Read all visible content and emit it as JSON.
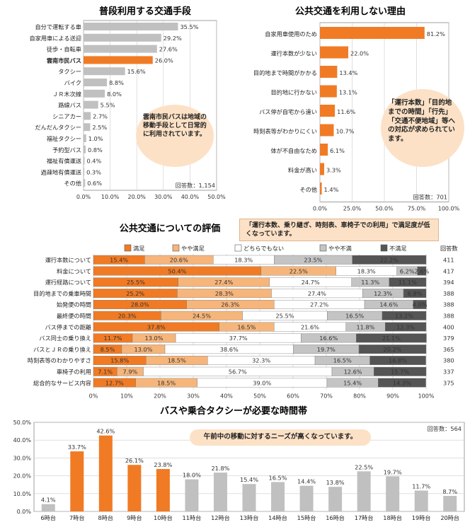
{
  "colors": {
    "orange": "#f07b24",
    "peach": "#f6b57a",
    "white": "#ffffff",
    "lgray": "#c4c4c4",
    "dgray": "#555555",
    "bar_gray": "#c0c0c0",
    "note_bg": "#fce1c6"
  },
  "chart_data": [
    {
      "id": "usual-transport",
      "type": "bar",
      "orientation": "horizontal",
      "title": "普段利用する交通手段",
      "categories": [
        "自分で運転する車",
        "自家用車による送迎",
        "徒歩・自転車",
        "雲南市民バス",
        "タクシー",
        "バイク",
        "ＪＲ木次線",
        "路線バス",
        "シニアカー",
        "だんだんタクシー",
        "福祉タクシー",
        "予約型バス",
        "福祉有償運送",
        "過疎地有償運送",
        "その他"
      ],
      "values": [
        35.5,
        29.2,
        27.6,
        26.0,
        15.6,
        8.8,
        8.0,
        5.5,
        2.7,
        2.5,
        1.0,
        0.8,
        0.4,
        0.3,
        0.6
      ],
      "value_labels": [
        "35.5%",
        "29.2%",
        "27.6%",
        "26.0%",
        "15.6%",
        "8.8%",
        "8.0%",
        "5.5%",
        "2.7%",
        "2.5%",
        "1.0%",
        "0.8%",
        "0.4%",
        "0.3%",
        "0.6%"
      ],
      "highlight": "雲南市民バス",
      "xlim": [
        0,
        50
      ],
      "xticks": [
        "0.0%",
        "10.0%",
        "20.0%",
        "30.0%",
        "40.0%",
        "50.0%"
      ],
      "respondents": "回答数：1,154",
      "note": "雲南市民バスは地域の移動手段として日常的に利用されています。"
    },
    {
      "id": "reasons-not-using",
      "type": "bar",
      "orientation": "horizontal",
      "title": "公共交通を利用しない理由",
      "categories": [
        "自家用車使用のため",
        "運行本数が少ない",
        "目的地まで時間がかかる",
        "目的地に行かない",
        "バス停が自宅から遠い",
        "時刻表等がわかりにくい",
        "体が不自由なため",
        "料金が高い",
        "その他"
      ],
      "values": [
        81.2,
        22.0,
        13.4,
        13.1,
        11.6,
        10.7,
        6.1,
        3.3,
        1.4
      ],
      "value_labels": [
        "81.2%",
        "22.0%",
        "13.4%",
        "13.1%",
        "11.6%",
        "10.7%",
        "6.1%",
        "3.3%",
        "1.4%"
      ],
      "xlim": [
        0,
        100
      ],
      "xticks": [
        "0.0%",
        "25.0%",
        "50.0%",
        "75.0%",
        "100.0%"
      ],
      "respondents": "回答数：701",
      "note": "「運行本数」「目的地までの時間」「行先」「交通不便地域」等への対応が求められています。"
    },
    {
      "id": "evaluation",
      "type": "bar",
      "stacked": true,
      "orientation": "horizontal",
      "title": "公共交通についての評価",
      "note": "「運行本数、乗り継ぎ、時刻表、車椅子での利用」で満足度が低くなっています。",
      "legend": [
        "満足",
        "やや満足",
        "どちらでもない",
        "やや不満",
        "不満足"
      ],
      "legend_header": "回答数",
      "categories": [
        "運行本数について",
        "料金について",
        "運行経路について",
        "目的地までの乗車時間",
        "始発便の時間",
        "最終便の時間",
        "バス停までの距離",
        "バス同士の乗り換え",
        "バスとＪＲの乗り換え",
        "時刻表等のわかりやすさ",
        "車椅子の利用",
        "総合的なサービス内容"
      ],
      "series": [
        {
          "name": "満足",
          "values": [
            15.4,
            50.4,
            25.5,
            25.2,
            28.0,
            20.3,
            37.8,
            11.7,
            8.5,
            15.8,
            7.1,
            12.7
          ]
        },
        {
          "name": "やや満足",
          "values": [
            20.6,
            22.5,
            27.4,
            28.3,
            26.3,
            24.5,
            16.5,
            13.0,
            13.0,
            18.5,
            7.9,
            18.5
          ]
        },
        {
          "name": "どちらでもない",
          "values": [
            18.3,
            18.3,
            24.7,
            27.4,
            27.2,
            25.5,
            21.6,
            37.7,
            38.6,
            32.3,
            56.7,
            39.0
          ]
        },
        {
          "name": "やや不満",
          "values": [
            23.5,
            6.2,
            11.3,
            12.3,
            14.6,
            16.5,
            11.8,
            16.6,
            19.7,
            16.5,
            12.6,
            15.4
          ]
        },
        {
          "name": "不満足",
          "values": [
            22.2,
            2.6,
            11.1,
            6.8,
            4.0,
            13.2,
            12.3,
            21.1,
            20.2,
            16.8,
            15.7,
            14.3
          ]
        }
      ],
      "counts": [
        "411",
        "417",
        "394",
        "388",
        "388",
        "388",
        "400",
        "379",
        "365",
        "380",
        "337",
        "375"
      ],
      "xlim": [
        0,
        100
      ],
      "xticks": [
        "0%",
        "10%",
        "20%",
        "30%",
        "40%",
        "50%",
        "60%",
        "70%",
        "80%",
        "90%",
        "100%"
      ]
    },
    {
      "id": "needed-time",
      "type": "bar",
      "title": "バスや乗合タクシーが必要な時間帯",
      "categories": [
        "6時台",
        "7時台",
        "8時台",
        "9時台",
        "10時台",
        "11時台",
        "12時台",
        "13時台",
        "14時台",
        "15時台",
        "16時台",
        "17時台",
        "18時台",
        "19時台",
        "20時台"
      ],
      "values": [
        4.1,
        33.7,
        42.6,
        26.1,
        23.8,
        18.0,
        21.8,
        15.4,
        16.5,
        14.4,
        13.8,
        22.5,
        19.7,
        11.7,
        8.7
      ],
      "value_labels": [
        "4.1%",
        "33.7%",
        "42.6%",
        "26.1%",
        "23.8%",
        "18.0%",
        "21.8%",
        "15.4%",
        "16.5%",
        "14.4%",
        "13.8%",
        "22.5%",
        "19.7%",
        "11.7%",
        "8.7%"
      ],
      "highlight_range": [
        "7時台",
        "10時台"
      ],
      "ylim": [
        0,
        50
      ],
      "yticks": [
        "0.0%",
        "10.0%",
        "20.0%",
        "30.0%",
        "40.0%",
        "50.0%"
      ],
      "respondents": "回答数：564",
      "note": "午前中の移動に対するニーズが高くなっています。"
    }
  ]
}
